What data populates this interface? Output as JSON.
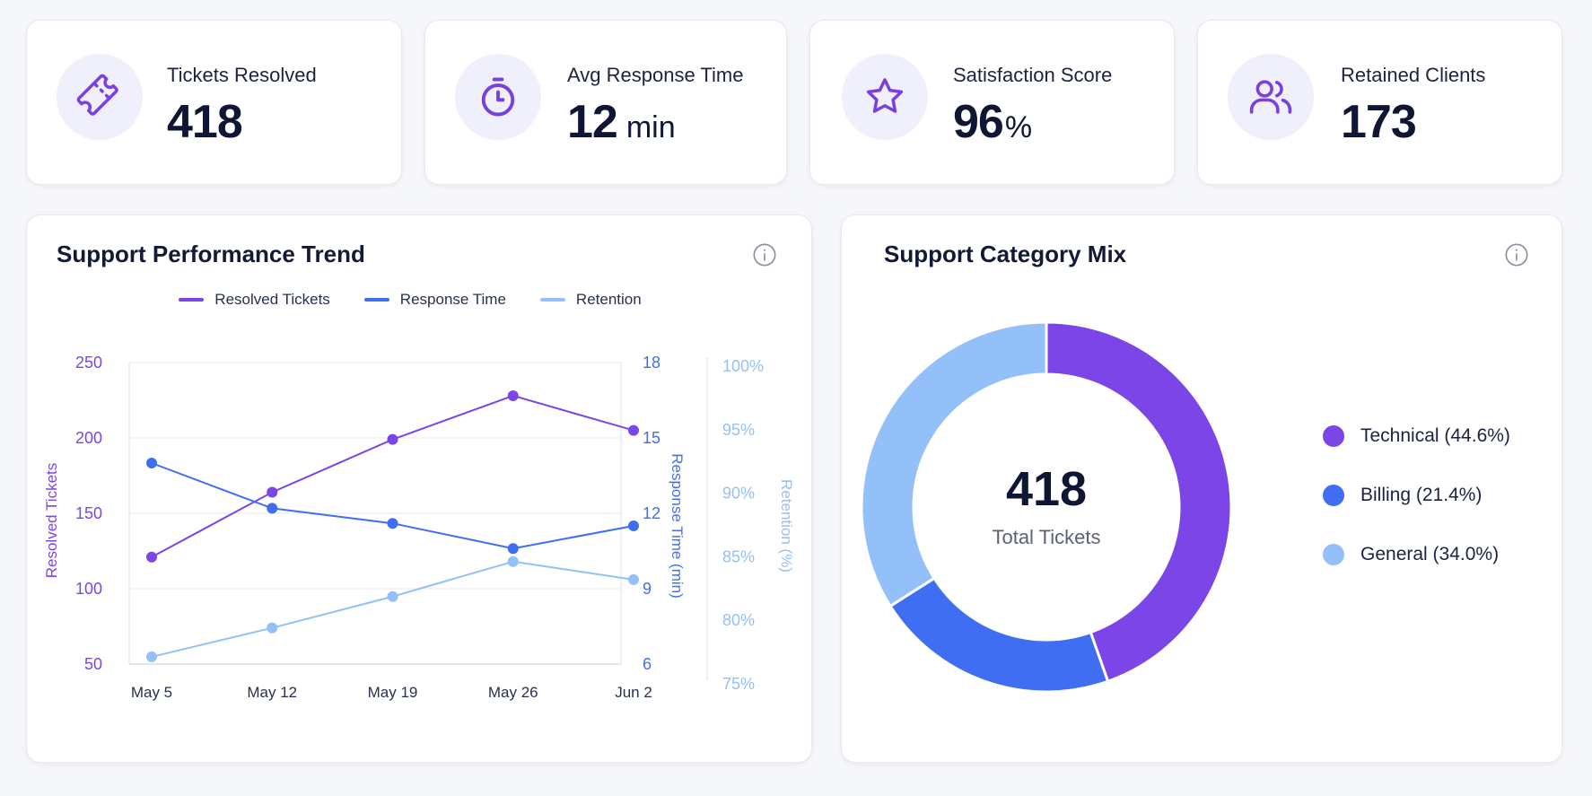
{
  "kpis": [
    {
      "label": "Tickets Resolved",
      "value": "418",
      "unit": "",
      "icon": "ticket-icon"
    },
    {
      "label": "Avg Response Time",
      "value": "12",
      "unit": "min",
      "icon": "stopwatch-icon"
    },
    {
      "label": "Satisfaction Score",
      "value": "96",
      "unit": "%",
      "icon": "star-icon"
    },
    {
      "label": "Retained Clients",
      "value": "173",
      "unit": "",
      "icon": "users-icon"
    }
  ],
  "colors": {
    "purple": "#7b45e8",
    "blue": "#3f6ef2",
    "light_blue": "#93c0f8",
    "icon_purple": "#7a3fe0"
  },
  "trend": {
    "title": "Support Performance Trend",
    "info_icon": "info-icon",
    "legend": [
      "Resolved Tickets",
      "Response Time",
      "Retention"
    ]
  },
  "mix": {
    "title": "Support Category Mix",
    "info_icon": "info-icon",
    "center_value": "418",
    "center_label": "Total Tickets",
    "legend": [
      "Technical (44.6%)",
      "Billing (21.4%)",
      "General (34.0%)"
    ]
  },
  "chart_data": [
    {
      "type": "line",
      "title": "Support Performance Trend",
      "x": [
        "May 5",
        "May 12",
        "May 19",
        "May 26",
        "Jun 2"
      ],
      "axes": {
        "left": {
          "label": "Resolved Tickets",
          "range": [
            50,
            250
          ],
          "ticks": [
            "50",
            "100",
            "150",
            "200",
            "250"
          ]
        },
        "right1": {
          "label": "Response Time (min)",
          "range": [
            6,
            18
          ],
          "ticks": [
            "6",
            "9",
            "12",
            "15",
            "18"
          ]
        },
        "right2": {
          "label": "Retention (%)",
          "range": [
            75,
            100
          ],
          "ticks": [
            "75%",
            "80%",
            "85%",
            "90%",
            "95%",
            "100%"
          ]
        }
      },
      "series": [
        {
          "name": "Resolved Tickets",
          "axis": "left",
          "values": [
            121,
            164,
            199,
            228,
            205
          ]
        },
        {
          "name": "Response Time",
          "axis": "right1",
          "values": [
            14.0,
            12.2,
            11.6,
            10.6,
            11.5
          ]
        },
        {
          "name": "Retention",
          "axis": "right2",
          "values": [
            75.6,
            78.0,
            80.6,
            83.5,
            82.0
          ]
        }
      ],
      "grid": true,
      "legend_position": "top"
    },
    {
      "type": "pie",
      "title": "Support Category Mix",
      "categories": [
        "Technical",
        "Billing",
        "General"
      ],
      "values": [
        44.6,
        21.4,
        34.0
      ],
      "center_text": "418",
      "center_subtext": "Total Tickets",
      "legend_position": "right"
    }
  ]
}
